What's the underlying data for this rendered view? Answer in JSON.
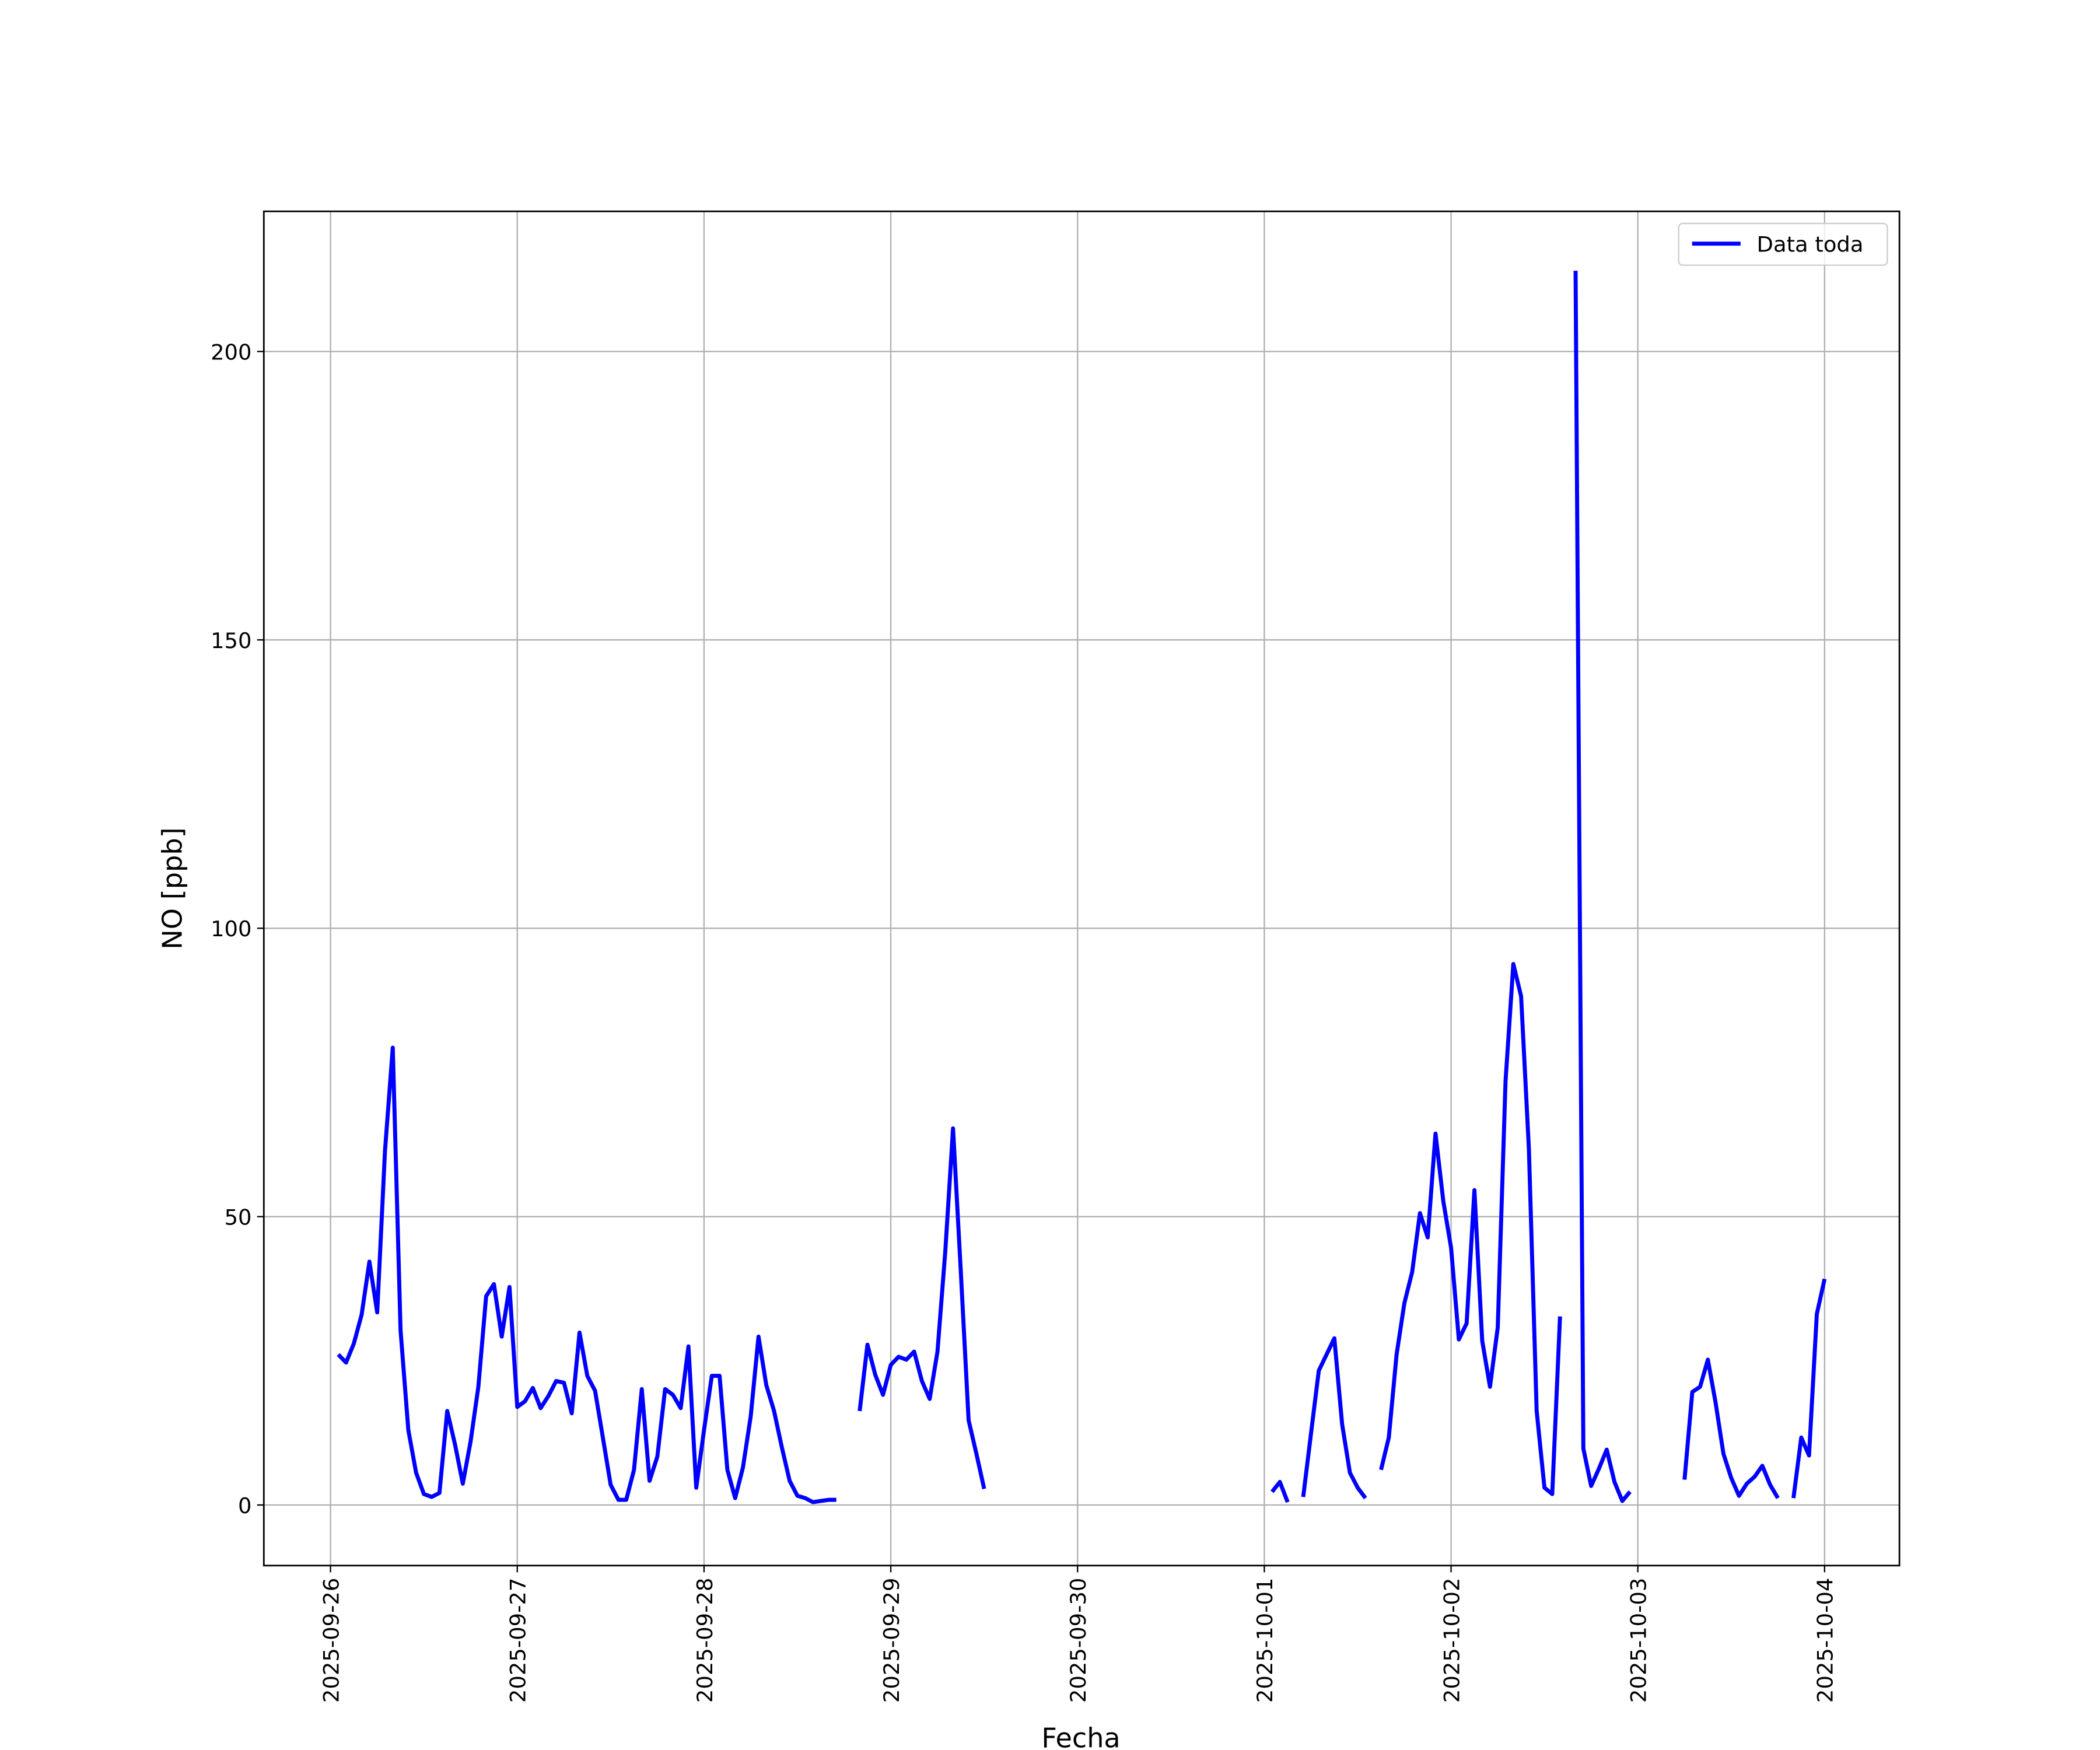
{
  "chart_data": {
    "type": "line",
    "x_label": "Fecha",
    "y_label": "NO [ppb]",
    "x": [
      "2025-09-26 01:00",
      "2025-09-26 02:00",
      "2025-09-26 03:00",
      "2025-09-26 04:00",
      "2025-09-26 05:00",
      "2025-09-26 06:00",
      "2025-09-26 07:00",
      "2025-09-26 08:00",
      "2025-09-26 09:00",
      "2025-09-26 10:00",
      "2025-09-26 11:00",
      "2025-09-26 12:00",
      "2025-09-26 13:00",
      "2025-09-26 14:00",
      "2025-09-26 15:00",
      "2025-09-26 16:00",
      "2025-09-26 17:00",
      "2025-09-26 18:00",
      "2025-09-26 19:00",
      "2025-09-26 20:00",
      "2025-09-26 21:00",
      "2025-09-26 22:00",
      "2025-09-26 23:00",
      "2025-09-27 00:00",
      "2025-09-27 01:00",
      "2025-09-27 02:00",
      "2025-09-27 03:00",
      "2025-09-27 04:00",
      "2025-09-27 05:00",
      "2025-09-27 06:00",
      "2025-09-27 07:00",
      "2025-09-27 08:00",
      "2025-09-27 09:00",
      "2025-09-27 10:00",
      "2025-09-27 11:00",
      "2025-09-27 12:00",
      "2025-09-27 13:00",
      "2025-09-27 14:00",
      "2025-09-27 15:00",
      "2025-09-27 16:00",
      "2025-09-27 17:00",
      "2025-09-27 18:00",
      "2025-09-27 19:00",
      "2025-09-27 20:00",
      "2025-09-27 21:00",
      "2025-09-27 22:00",
      "2025-09-27 23:00",
      "2025-09-28 00:00",
      "2025-09-28 01:00",
      "2025-09-28 02:00",
      "2025-09-28 03:00",
      "2025-09-28 04:00",
      "2025-09-28 05:00",
      "2025-09-28 06:00",
      "2025-09-28 07:00",
      "2025-09-28 08:00",
      "2025-09-28 09:00",
      "2025-09-28 10:00",
      "2025-09-28 11:00",
      "2025-09-28 12:00",
      "2025-09-28 13:00",
      "2025-09-28 14:00",
      "2025-09-28 15:00",
      "2025-09-28 16:00",
      "2025-09-28 17:00",
      "2025-09-28 18:00",
      "2025-09-28 20:00",
      "2025-09-28 21:00",
      "2025-09-28 22:00",
      "2025-09-28 23:00",
      "2025-09-29 00:00",
      "2025-09-29 01:00",
      "2025-09-29 02:00",
      "2025-09-29 03:00",
      "2025-09-29 04:00",
      "2025-09-29 05:00",
      "2025-09-29 06:00",
      "2025-09-29 07:00",
      "2025-09-29 08:00",
      "2025-09-29 09:00",
      "2025-09-29 10:00",
      "2025-09-29 11:00",
      "2025-09-29 12:00",
      "2025-09-29 13:00",
      "2025-10-01 01:00",
      "2025-10-01 02:00",
      "2025-10-01 03:00",
      "2025-10-01 04:00",
      "2025-10-01 05:00",
      "2025-10-01 06:00",
      "2025-10-01 07:00",
      "2025-10-01 08:00",
      "2025-10-01 09:00",
      "2025-10-01 10:00",
      "2025-10-01 11:00",
      "2025-10-01 12:00",
      "2025-10-01 13:00",
      "2025-10-01 14:00",
      "2025-10-01 15:00",
      "2025-10-01 16:00",
      "2025-10-01 17:00",
      "2025-10-01 18:00",
      "2025-10-01 19:00",
      "2025-10-01 20:00",
      "2025-10-01 21:00",
      "2025-10-01 22:00",
      "2025-10-01 23:00",
      "2025-10-02 00:00",
      "2025-10-02 01:00",
      "2025-10-02 02:00",
      "2025-10-02 03:00",
      "2025-10-02 04:00",
      "2025-10-02 05:00",
      "2025-10-02 06:00",
      "2025-10-02 07:00",
      "2025-10-02 08:00",
      "2025-10-02 09:00",
      "2025-10-02 10:00",
      "2025-10-02 11:00",
      "2025-10-02 12:00",
      "2025-10-02 13:00",
      "2025-10-02 14:00",
      "2025-10-02 15:00",
      "2025-10-02 16:00",
      "2025-10-02 17:00",
      "2025-10-02 18:00",
      "2025-10-02 19:00",
      "2025-10-02 20:00",
      "2025-10-02 21:00",
      "2025-10-02 22:00",
      "2025-10-02 23:00",
      "2025-10-03 00:00",
      "2025-10-03 06:00",
      "2025-10-03 07:00",
      "2025-10-03 08:00",
      "2025-10-03 09:00",
      "2025-10-03 10:00",
      "2025-10-03 11:00",
      "2025-10-03 12:00",
      "2025-10-03 13:00",
      "2025-10-03 14:00",
      "2025-10-03 15:00",
      "2025-10-03 16:00",
      "2025-10-03 17:00",
      "2025-10-03 18:00",
      "2025-10-03 19:00",
      "2025-10-03 20:00",
      "2025-10-03 21:00",
      "2025-10-03 22:00",
      "2025-10-03 23:00",
      "2025-10-04 00:00"
    ],
    "series": [
      {
        "name": "Data toda",
        "color": "#0000ff",
        "values": [
          26.1,
          24.7,
          28,
          33,
          42.2,
          33.4,
          61.4,
          79.3,
          30.3,
          13,
          5.6,
          1.9,
          1.4,
          2.1,
          16.3,
          10.5,
          3.7,
          11,
          20.5,
          36.2,
          38.3,
          29.2,
          37.8,
          17,
          18,
          20.3,
          16.8,
          18.9,
          21.5,
          21.2,
          15.9,
          29.9,
          22.4,
          19.8,
          11.7,
          3.5,
          0.9,
          0.9,
          6.1,
          20.1,
          4.2,
          8.4,
          20.1,
          19.1,
          16.8,
          27.5,
          3,
          13,
          22.4,
          22.4,
          6.1,
          1.2,
          6.5,
          15.4,
          29.2,
          20.8,
          16.3,
          10,
          4.2,
          1.6,
          1.2,
          0.5,
          0.7,
          0.9,
          0.9,
          null,
          16.3,
          27.8,
          22.6,
          19.1,
          24.3,
          25.7,
          25.2,
          26.6,
          21.5,
          18.4,
          26.6,
          43.9,
          65.3,
          40.4,
          14.7,
          8.9,
          2.8,
          null,
          2.3,
          4,
          0.5,
          null,
          1.4,
          12.4,
          23.3,
          26.1,
          28.9,
          14,
          5.6,
          3,
          1.2,
          null,
          6.1,
          11.7,
          26.1,
          35,
          40.4,
          50.6,
          46.4,
          64.4,
          52.7,
          44.6,
          28.7,
          31.5,
          54.6,
          28.5,
          20.5,
          30.8,
          73.5,
          93.8,
          88.2,
          61.8,
          16.3,
          3,
          1.9,
          32.7,
          null,
          214,
          9.8,
          3.3,
          6.3,
          9.6,
          4,
          0.7,
          2.3,
          null,
          4.4,
          19.6,
          20.5,
          25.2,
          17.7,
          8.9,
          4.7,
          1.6,
          3.7,
          4.9,
          6.8,
          3.5,
          1.2,
          null,
          1.2,
          11.7,
          8.6,
          33.1,
          39.2
        ]
      }
    ],
    "xlim": [
      "2025-09-25 15:26",
      "2025-10-04 09:37"
    ],
    "xticks": [
      "2025-09-26",
      "2025-09-27",
      "2025-09-28",
      "2025-09-29",
      "2025-09-30",
      "2025-10-01",
      "2025-10-02",
      "2025-10-03",
      "2025-10-04"
    ],
    "ylim": [
      -10.5,
      224.3
    ],
    "yticks": [
      0,
      50,
      100,
      150,
      200
    ],
    "grid": true,
    "legend": "upper right"
  }
}
